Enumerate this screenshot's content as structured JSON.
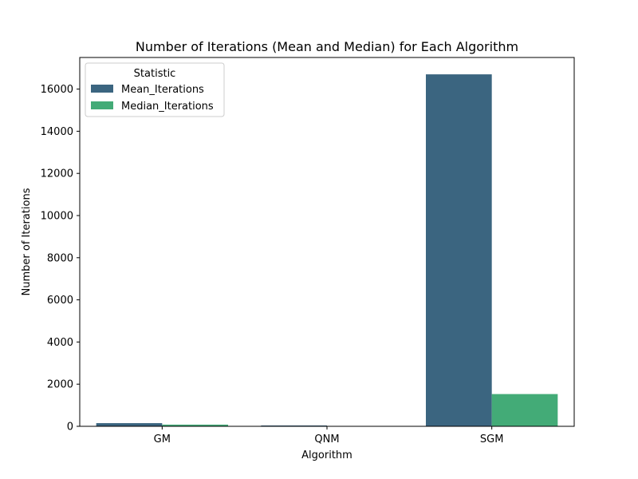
{
  "chart_data": {
    "type": "bar",
    "title": "Number of Iterations (Mean and Median) for Each Algorithm",
    "xlabel": "Algorithm",
    "ylabel": "Number of Iterations",
    "categories": [
      "GM",
      "QNM",
      "SGM"
    ],
    "series": [
      {
        "name": "Mean_Iterations",
        "values": [
          150,
          40,
          16700
        ],
        "color": "#3b6580"
      },
      {
        "name": "Median_Iterations",
        "values": [
          80,
          5,
          1530
        ],
        "color": "#43ab77"
      }
    ],
    "ylim": [
      0,
      17500
    ],
    "yticks": [
      0,
      2000,
      4000,
      6000,
      8000,
      10000,
      12000,
      14000,
      16000
    ],
    "legend": {
      "title": "Statistic",
      "placement": "top-left"
    },
    "grid": false
  }
}
